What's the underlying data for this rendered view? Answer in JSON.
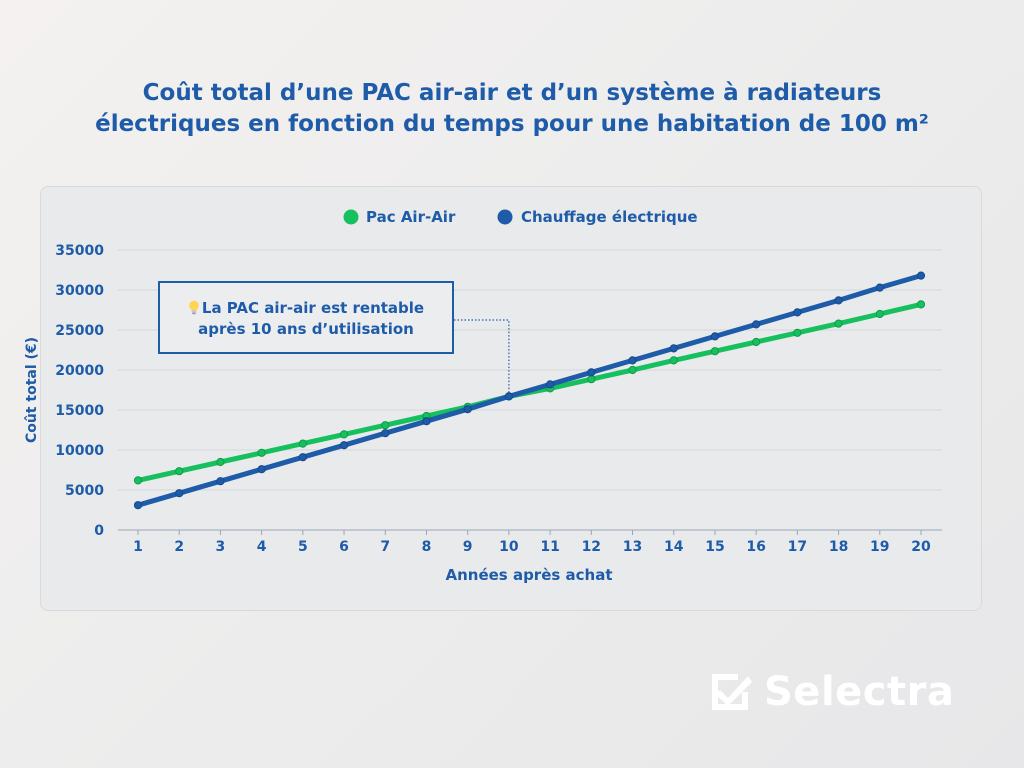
{
  "title_line1": "Coût total d’une PAC air-air et d’un système à radiateurs",
  "title_line2": "électriques en fonction du temps pour une habitation de 100 m²",
  "annotation": {
    "line1": "La PAC air-air est rentable",
    "line2": "après 10 ans d’utilisation",
    "icon": "lightbulb-icon",
    "x": 10,
    "y": 16700
  },
  "logo": {
    "text": "Selectra",
    "icon": "check-box-icon"
  },
  "chart_data": {
    "type": "line",
    "xlabel": "Années après achat",
    "ylabel": "Coût total (€)",
    "x": [
      1,
      2,
      3,
      4,
      5,
      6,
      7,
      8,
      9,
      10,
      11,
      12,
      13,
      14,
      15,
      16,
      17,
      18,
      19,
      20
    ],
    "ylim": [
      0,
      35000
    ],
    "yticks": [
      0,
      5000,
      10000,
      15000,
      20000,
      25000,
      30000,
      35000
    ],
    "grid": true,
    "legend_position": "top",
    "series": [
      {
        "name": "Pac Air-Air",
        "color": "#17c05f",
        "values": [
          6200,
          7350,
          8500,
          9650,
          10800,
          11950,
          13100,
          14250,
          15400,
          16700,
          17700,
          18850,
          20000,
          21200,
          22350,
          23500,
          24650,
          25800,
          27000,
          28200
        ]
      },
      {
        "name": "Chauffage électrique",
        "color": "#1e5ba8",
        "values": [
          3100,
          4600,
          6100,
          7600,
          9100,
          10600,
          12100,
          13600,
          15100,
          16700,
          18200,
          19700,
          21200,
          22700,
          24200,
          25700,
          27200,
          28700,
          30300,
          31800
        ]
      }
    ]
  }
}
